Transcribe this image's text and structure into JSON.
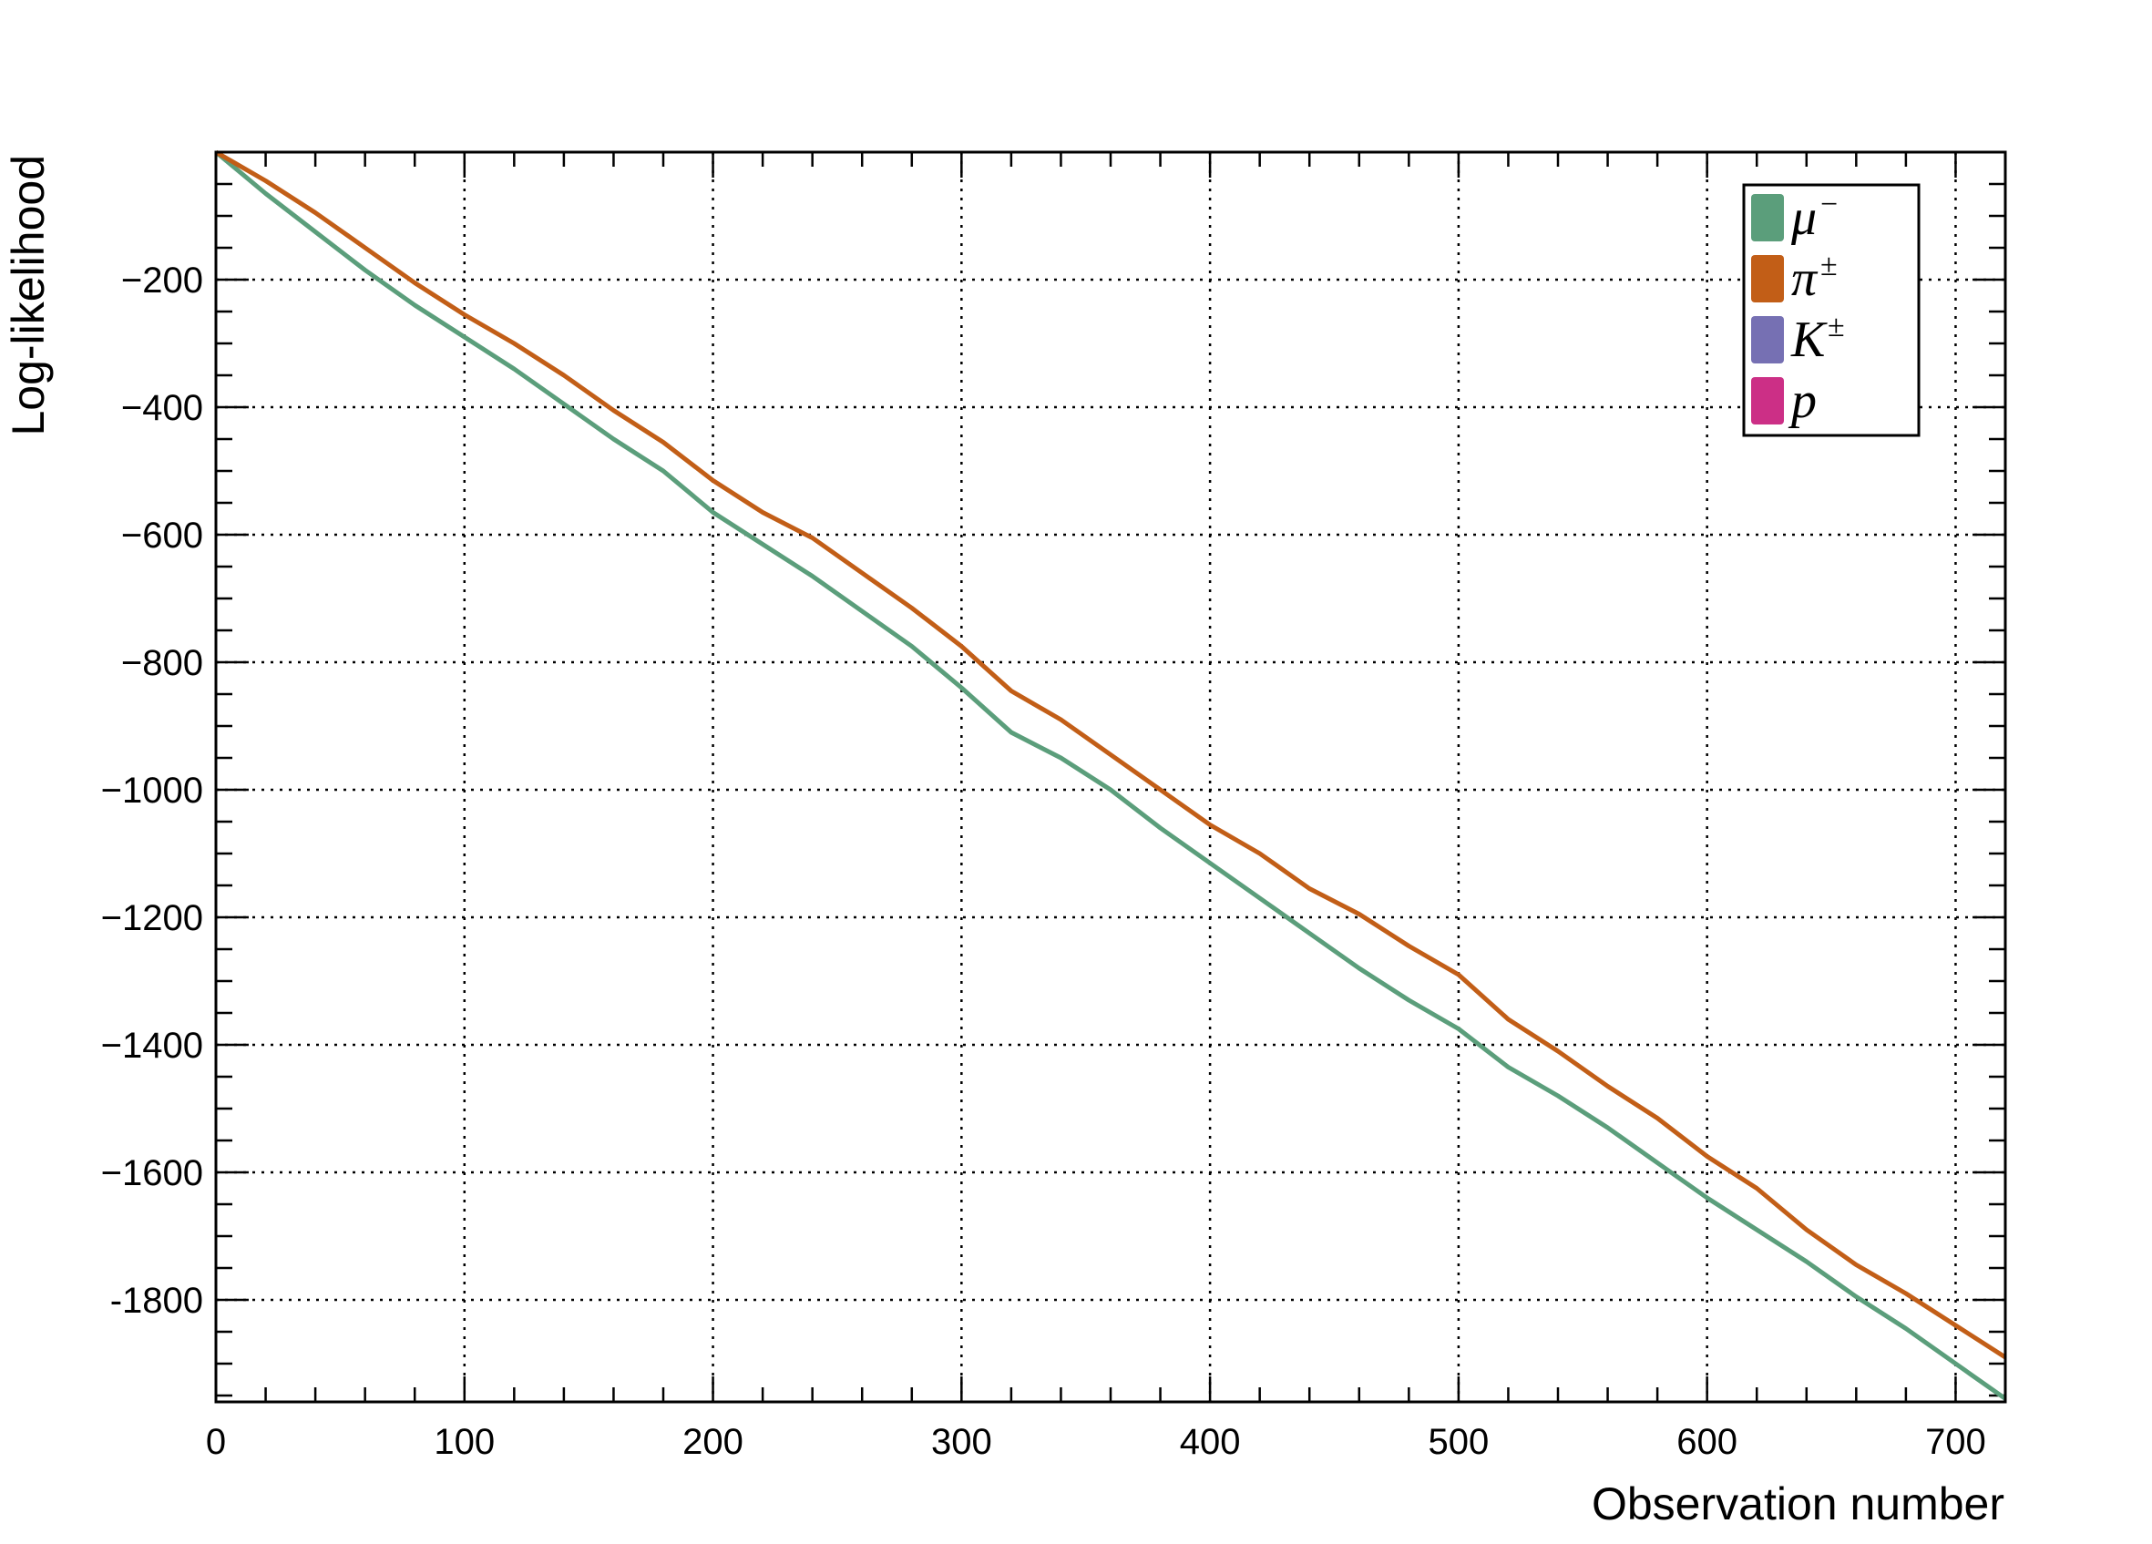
{
  "chart_data": {
    "type": "line",
    "title": "",
    "xlabel": "Observation number",
    "ylabel": "Log-likelihood",
    "xlim": [
      0,
      720
    ],
    "ylim": [
      -1960,
      0
    ],
    "x_ticks": [
      0,
      100,
      200,
      300,
      400,
      500,
      600,
      700
    ],
    "x_tick_labels": [
      "0",
      "100",
      "200",
      "300",
      "400",
      "500",
      "600",
      "700"
    ],
    "y_ticks": [
      -200,
      -400,
      -600,
      -800,
      -1000,
      -1200,
      -1400,
      -1600,
      -1800
    ],
    "y_tick_labels": [
      "−200",
      "−400",
      "−600",
      "−800",
      "−1000",
      "−1200",
      "−1400",
      "−1600",
      "-1800"
    ],
    "grid": true,
    "legend_position": "top-right",
    "legend": [
      {
        "base": "μ",
        "sup": "−",
        "color": "#5b9e7b"
      },
      {
        "base": "π",
        "sup": "±",
        "color": "#c25e17"
      },
      {
        "base": "K",
        "sup": "±",
        "color": "#7670b3"
      },
      {
        "base": "p",
        "sup": "",
        "color": "#cc2f86"
      }
    ],
    "series": [
      {
        "color": "#5b9e7b",
        "x": [
          0,
          20,
          40,
          60,
          80,
          100,
          120,
          140,
          160,
          180,
          200,
          220,
          240,
          260,
          280,
          300,
          320,
          340,
          360,
          380,
          400,
          420,
          440,
          460,
          480,
          500,
          520,
          540,
          560,
          580,
          600,
          620,
          640,
          660,
          680,
          700,
          720
        ],
        "values": [
          0,
          -65,
          -125,
          -185,
          -240,
          -290,
          -340,
          -395,
          -450,
          -500,
          -565,
          -615,
          -665,
          -720,
          -775,
          -840,
          -910,
          -950,
          -1000,
          -1060,
          -1115,
          -1170,
          -1225,
          -1280,
          -1330,
          -1375,
          -1435,
          -1480,
          -1530,
          -1585,
          -1640,
          -1690,
          -1740,
          -1795,
          -1845,
          -1900,
          -1955
        ]
      },
      {
        "color": "#c25e17",
        "x": [
          0,
          20,
          40,
          60,
          80,
          100,
          120,
          140,
          160,
          180,
          200,
          220,
          240,
          260,
          280,
          300,
          320,
          340,
          360,
          380,
          400,
          420,
          440,
          460,
          480,
          500,
          520,
          540,
          560,
          580,
          600,
          620,
          640,
          660,
          680,
          700,
          720
        ],
        "values": [
          0,
          -45,
          -95,
          -150,
          -205,
          -255,
          -300,
          -350,
          -405,
          -455,
          -515,
          -565,
          -605,
          -660,
          -715,
          -775,
          -845,
          -890,
          -945,
          -1000,
          -1055,
          -1100,
          -1155,
          -1195,
          -1245,
          -1290,
          -1360,
          -1410,
          -1465,
          -1515,
          -1575,
          -1625,
          -1690,
          -1745,
          -1790,
          -1840,
          -1890
        ]
      }
    ]
  }
}
